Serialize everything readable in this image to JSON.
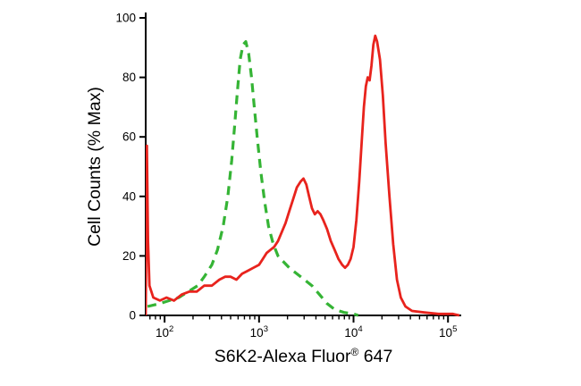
{
  "figure": {
    "background_color": "#ffffff",
    "axis_color": "#000000"
  },
  "chart_data": {
    "type": "line",
    "subtype": "flow-cytometry-histogram",
    "title": "",
    "xlabel": "S6K2-Alexa Fluor® 647",
    "xlabel_parts": {
      "prefix": "S6K2-Alexa Fluor",
      "sup": "®",
      "suffix": " 647"
    },
    "ylabel": "Cell Counts (% Max)",
    "x_scale": "log",
    "xlim_log10": [
      1.8,
      5.14
    ],
    "ylim": [
      0,
      100
    ],
    "x_tick_exponents": [
      2,
      3,
      4,
      5
    ],
    "x_tick_base": "10",
    "y_ticks": [
      0,
      20,
      40,
      60,
      80,
      100
    ],
    "grid": false,
    "legend": "none",
    "series": [
      {
        "id": "green-dashed-curve",
        "name": "green dashed histogram",
        "color": "#35b435",
        "line_style": "dashed",
        "dash": "10 7",
        "stroke_width": 3.2,
        "peak": {
          "x_log10": 2.86,
          "y": 92
        },
        "points": [
          [
            1.82,
            3
          ],
          [
            1.95,
            4
          ],
          [
            2.05,
            5
          ],
          [
            2.15,
            6
          ],
          [
            2.25,
            8
          ],
          [
            2.35,
            10
          ],
          [
            2.42,
            13
          ],
          [
            2.5,
            17
          ],
          [
            2.56,
            22
          ],
          [
            2.62,
            30
          ],
          [
            2.67,
            40
          ],
          [
            2.71,
            52
          ],
          [
            2.74,
            63
          ],
          [
            2.77,
            75
          ],
          [
            2.8,
            86
          ],
          [
            2.83,
            91
          ],
          [
            2.86,
            92
          ],
          [
            2.89,
            88
          ],
          [
            2.92,
            80
          ],
          [
            2.95,
            70
          ],
          [
            2.98,
            60
          ],
          [
            3.02,
            48
          ],
          [
            3.06,
            38
          ],
          [
            3.1,
            30
          ],
          [
            3.15,
            24
          ],
          [
            3.2,
            20
          ],
          [
            3.26,
            18
          ],
          [
            3.32,
            16
          ],
          [
            3.4,
            14
          ],
          [
            3.48,
            12
          ],
          [
            3.56,
            10
          ],
          [
            3.64,
            7
          ],
          [
            3.72,
            4
          ],
          [
            3.8,
            2
          ],
          [
            3.9,
            1
          ],
          [
            4.0,
            0.5
          ],
          [
            4.05,
            0
          ]
        ]
      },
      {
        "id": "red-solid-curve",
        "name": "red solid histogram",
        "color": "#e8231d",
        "line_style": "solid",
        "dash": "",
        "stroke_width": 2.8,
        "peak": {
          "x_log10": 4.23,
          "y": 94
        },
        "points": [
          [
            1.8,
            0
          ],
          [
            1.812,
            57
          ],
          [
            1.825,
            25
          ],
          [
            1.84,
            10
          ],
          [
            1.88,
            6
          ],
          [
            1.95,
            5
          ],
          [
            2.02,
            6
          ],
          [
            2.1,
            5
          ],
          [
            2.18,
            7
          ],
          [
            2.26,
            8
          ],
          [
            2.34,
            8
          ],
          [
            2.42,
            10
          ],
          [
            2.5,
            10
          ],
          [
            2.58,
            12
          ],
          [
            2.64,
            13
          ],
          [
            2.7,
            13
          ],
          [
            2.76,
            12
          ],
          [
            2.82,
            14
          ],
          [
            2.88,
            15
          ],
          [
            2.94,
            16
          ],
          [
            3.0,
            17
          ],
          [
            3.04,
            19
          ],
          [
            3.08,
            21
          ],
          [
            3.12,
            22
          ],
          [
            3.16,
            23
          ],
          [
            3.2,
            25
          ],
          [
            3.24,
            28
          ],
          [
            3.28,
            31
          ],
          [
            3.32,
            35
          ],
          [
            3.36,
            39
          ],
          [
            3.4,
            43
          ],
          [
            3.44,
            45
          ],
          [
            3.47,
            46
          ],
          [
            3.5,
            44
          ],
          [
            3.53,
            40
          ],
          [
            3.56,
            36
          ],
          [
            3.59,
            34
          ],
          [
            3.62,
            35
          ],
          [
            3.65,
            34
          ],
          [
            3.68,
            32
          ],
          [
            3.72,
            29
          ],
          [
            3.76,
            25
          ],
          [
            3.8,
            22
          ],
          [
            3.84,
            19
          ],
          [
            3.88,
            17
          ],
          [
            3.91,
            16
          ],
          [
            3.94,
            17
          ],
          [
            3.97,
            19
          ],
          [
            4.0,
            23
          ],
          [
            4.03,
            32
          ],
          [
            4.06,
            45
          ],
          [
            4.09,
            60
          ],
          [
            4.11,
            70
          ],
          [
            4.13,
            77
          ],
          [
            4.15,
            80
          ],
          [
            4.17,
            79
          ],
          [
            4.19,
            84
          ],
          [
            4.21,
            91
          ],
          [
            4.23,
            94
          ],
          [
            4.25,
            92
          ],
          [
            4.28,
            86
          ],
          [
            4.31,
            74
          ],
          [
            4.34,
            58
          ],
          [
            4.38,
            40
          ],
          [
            4.42,
            24
          ],
          [
            4.46,
            12
          ],
          [
            4.5,
            6
          ],
          [
            4.55,
            3
          ],
          [
            4.62,
            1.5
          ],
          [
            4.75,
            1
          ],
          [
            4.9,
            0.5
          ],
          [
            5.05,
            0.5
          ],
          [
            5.12,
            0
          ]
        ]
      }
    ]
  }
}
